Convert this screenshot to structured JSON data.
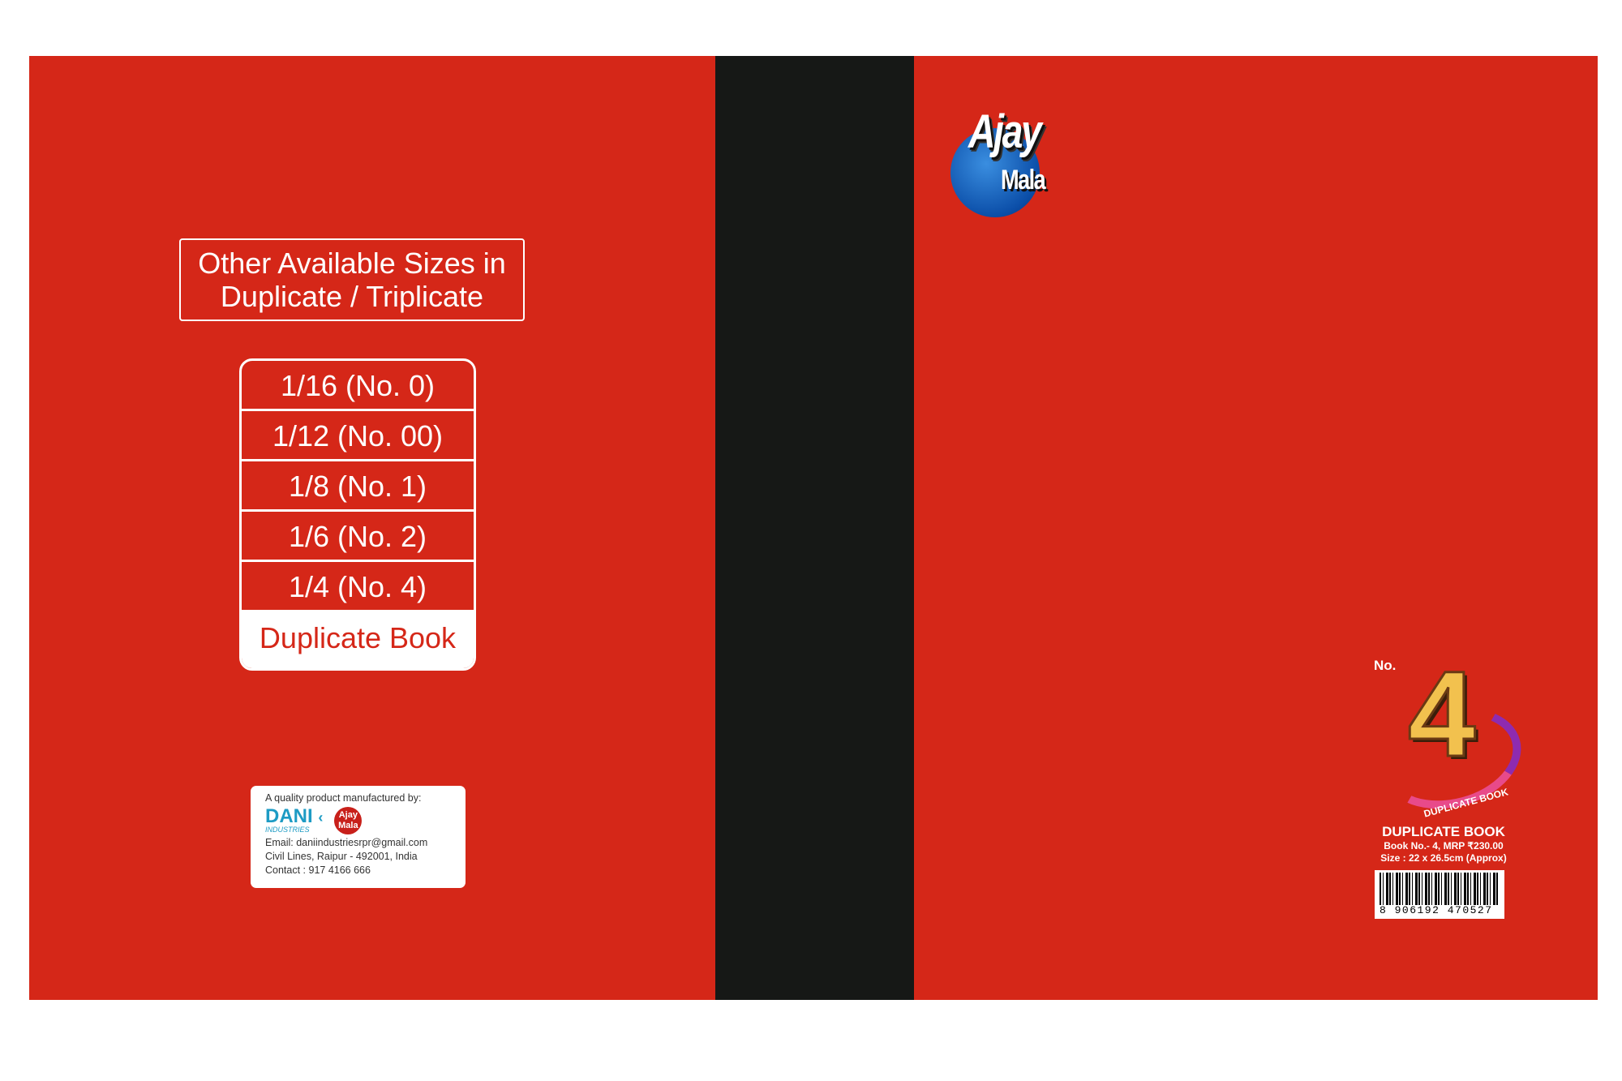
{
  "back_cover": {
    "sizes_title_line1": "Other Available Sizes in",
    "sizes_title_line2": "Duplicate / Triplicate",
    "sizes": [
      "1/16 (No. 0)",
      "1/12 (No. 00)",
      "1/8 (No. 1)",
      "1/6 (No. 2)",
      "1/4 (No. 4)"
    ],
    "sizes_footer": "Duplicate Book",
    "manufacturer": {
      "heading": "A quality product manufactured by:",
      "company_logo": "DANI",
      "company_sub": "INDUSTRIES",
      "brand_logo_line1": "Ajay",
      "brand_logo_line2": "Mala",
      "email": "Email: daniindustriesrpr@gmail.com",
      "address": "Civil Lines, Raipur - 492001, India",
      "contact": "Contact : 917 4166 666"
    }
  },
  "front_cover": {
    "brand_line1": "Ajay",
    "brand_line2": "Mala",
    "number_prefix": "No.",
    "number": "4",
    "ribbon_text": "DUPLICATE BOOK",
    "title": "DUPLICATE BOOK",
    "book_info": "Book No.- 4, MRP ₹230.00",
    "size_info": "Size : 22 x 26.5cm (Approx)",
    "barcode": "8 906192 470527"
  },
  "colors": {
    "cover": "#d52718",
    "spine": "#161816",
    "logo_blue": "#0b4ea8"
  }
}
